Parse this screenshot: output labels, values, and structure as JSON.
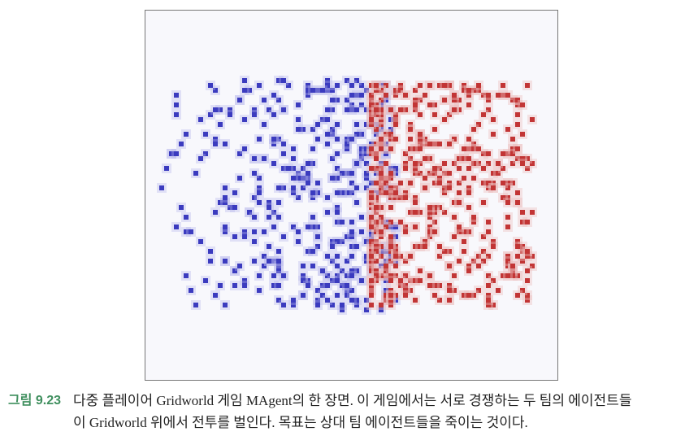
{
  "figure": {
    "label": "그림 9.23",
    "caption": [
      "다중 플레이어 Gridworld 게임 MAgent의 한 장면. 이 게임에서는 서로 경쟁하는 두 팀의 에이전트들",
      "이 Gridworld 위에서 전투를 벌인다. 목표는 상대 팀 에이전트들을 죽이는 것이다."
    ]
  }
}
